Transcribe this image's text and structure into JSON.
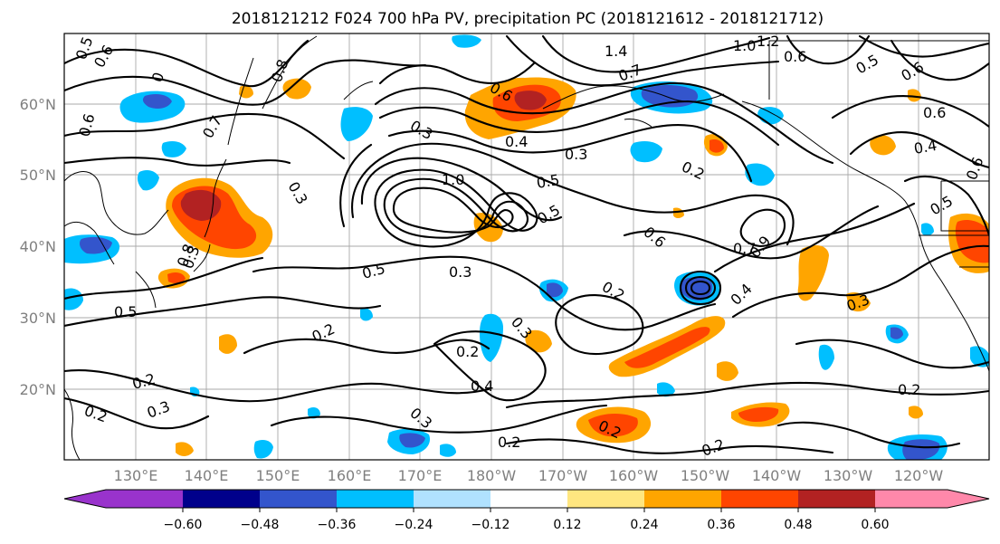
{
  "title": "2018121212 F024 700 hPa PV, precipitation PC (2018121612 - 2018121712)",
  "map": {
    "lat_labels": [
      "60°N",
      "50°N",
      "40°N",
      "30°N",
      "20°N"
    ],
    "lon_labels": [
      "130°E",
      "140°E",
      "150°E",
      "160°E",
      "170°E",
      "180°W",
      "170°W",
      "160°W",
      "150°W",
      "140°W",
      "130°W",
      "120°W"
    ],
    "contour_labels": [
      "0.5",
      "0.6",
      "1.4",
      "1.0",
      "1.2",
      "0.6",
      "0.5",
      "0.7",
      "0.8",
      "0.6",
      "0.7",
      "0",
      "0.6",
      "0.3",
      "0.4",
      "0.3",
      "0.2",
      "0.4",
      "0.6",
      "1.0",
      "0.3",
      "0.5",
      "0.5",
      "0.6",
      "0.7",
      "0.9",
      "0.3",
      "0.5",
      "0.3",
      "0.2",
      "0.4",
      "0.3",
      "0.5",
      "0.2",
      "0.3",
      "0.2",
      "0.4",
      "0.3",
      "0.2",
      "0.2",
      "0.2",
      "0.3",
      "0.2",
      "0.2",
      "0.2",
      "0.8",
      "0.6",
      "0.6",
      "0.5"
    ]
  },
  "colorbar": {
    "ticks": [
      "−0.60",
      "−0.48",
      "−0.36",
      "−0.24",
      "−0.12",
      "0.12",
      "0.24",
      "0.36",
      "0.48",
      "0.60"
    ],
    "colors": [
      "#9933cc",
      "#00008b",
      "#3355cc",
      "#00bfff",
      "#b0e2ff",
      "#ffffff",
      "#ffe680",
      "#ffa500",
      "#ff4500",
      "#b22222",
      "#ff88aa"
    ]
  }
}
